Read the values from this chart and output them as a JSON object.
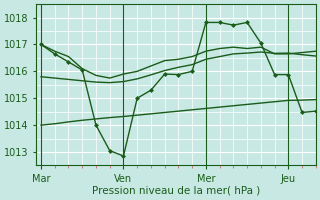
{
  "background_color": "#c8e8e4",
  "line_color": "#1a5c1a",
  "grid_color": "#b0d8d4",
  "xlabel": "Pression niveau de la mer( hPa )",
  "ylim": [
    1012.5,
    1018.5
  ],
  "yticks": [
    1013,
    1014,
    1015,
    1016,
    1017,
    1018
  ],
  "day_labels": [
    "Mar",
    "Ven",
    "Mer",
    "Jeu"
  ],
  "day_positions": [
    0,
    36,
    72,
    108
  ],
  "xlim": [
    -2,
    120
  ],
  "num_points_per_day": 12,
  "series": [
    {
      "x": [
        0,
        6,
        12,
        18,
        24,
        30,
        36,
        42,
        48,
        54,
        60,
        66,
        72,
        78,
        84,
        90,
        96,
        102,
        108,
        114,
        120
      ],
      "y": [
        1017.0,
        1016.75,
        1016.55,
        1016.1,
        1015.85,
        1015.75,
        1015.9,
        1016.0,
        1016.2,
        1016.4,
        1016.45,
        1016.55,
        1016.75,
        1016.85,
        1016.9,
        1016.85,
        1016.9,
        1016.65,
        1016.65,
        1016.7,
        1016.75
      ],
      "marker": null,
      "linewidth": 1.0
    },
    {
      "x": [
        0,
        6,
        12,
        18,
        24,
        30,
        36,
        42,
        48,
        54,
        60,
        66,
        72,
        78,
        84,
        90,
        96,
        102,
        108,
        114,
        120
      ],
      "y": [
        1014.0,
        1014.05,
        1014.12,
        1014.18,
        1014.23,
        1014.28,
        1014.32,
        1014.37,
        1014.42,
        1014.47,
        1014.52,
        1014.57,
        1014.62,
        1014.67,
        1014.72,
        1014.77,
        1014.82,
        1014.87,
        1014.92,
        1014.93,
        1014.95
      ],
      "marker": null,
      "linewidth": 1.0
    },
    {
      "x": [
        0,
        6,
        12,
        18,
        24,
        30,
        36,
        42,
        48,
        54,
        60,
        66,
        72,
        78,
        84,
        90,
        96,
        102,
        108,
        114,
        120
      ],
      "y": [
        1015.8,
        1015.75,
        1015.7,
        1015.65,
        1015.6,
        1015.58,
        1015.62,
        1015.72,
        1015.87,
        1016.03,
        1016.15,
        1016.25,
        1016.45,
        1016.55,
        1016.65,
        1016.68,
        1016.72,
        1016.67,
        1016.68,
        1016.62,
        1016.57
      ],
      "marker": null,
      "linewidth": 1.0
    },
    {
      "x": [
        0,
        6,
        12,
        18,
        24,
        30,
        36,
        42,
        48,
        54,
        60,
        66,
        72,
        78,
        84,
        90,
        96,
        102,
        108,
        114,
        120
      ],
      "y": [
        1017.0,
        1016.65,
        1016.35,
        1016.05,
        1014.0,
        1013.05,
        1012.85,
        1015.0,
        1015.3,
        1015.9,
        1015.88,
        1016.0,
        1017.82,
        1017.82,
        1017.72,
        1017.82,
        1017.05,
        1015.88,
        1015.88,
        1014.47,
        1014.52
      ],
      "marker": "D",
      "markersize": 2.0,
      "linewidth": 1.0
    }
  ]
}
